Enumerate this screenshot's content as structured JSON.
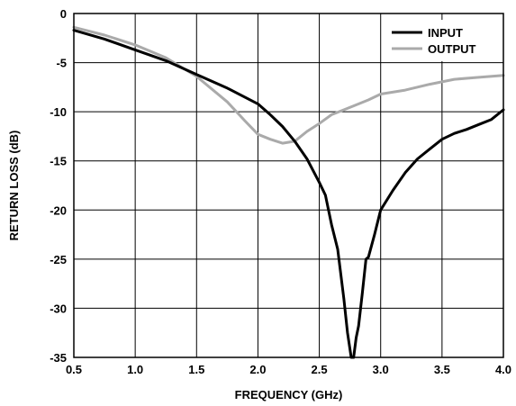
{
  "chart_data": {
    "type": "line",
    "xlabel": "FREQUENCY (GHz)",
    "ylabel": "RETURN LOSS (dB)",
    "xlim": [
      0.5,
      4.0
    ],
    "ylim": [
      -35,
      0
    ],
    "xticks": [
      "0.5",
      "1.0",
      "1.5",
      "2.0",
      "2.5",
      "3.0",
      "3.5",
      "4.0"
    ],
    "yticks": [
      "0",
      "-5",
      "-10",
      "-15",
      "-20",
      "-25",
      "-30",
      "-35"
    ],
    "grid": true,
    "legend_position": "top-right",
    "series": [
      {
        "name": "INPUT",
        "color": "#000000",
        "x": [
          0.5,
          0.75,
          1.0,
          1.25,
          1.5,
          1.75,
          2.0,
          2.1,
          2.2,
          2.3,
          2.4,
          2.5,
          2.55,
          2.6,
          2.65,
          2.7,
          2.73,
          2.76,
          2.78,
          2.8,
          2.82,
          2.85,
          2.88,
          2.9,
          2.95,
          3.0,
          3.1,
          3.2,
          3.3,
          3.4,
          3.5,
          3.6,
          3.7,
          3.8,
          3.9,
          4.0
        ],
        "y": [
          -1.7,
          -2.6,
          -3.7,
          -4.8,
          -6.2,
          -7.6,
          -9.2,
          -10.3,
          -11.5,
          -13.0,
          -14.8,
          -17.2,
          -18.5,
          -21.5,
          -24.0,
          -29.0,
          -32.5,
          -35.0,
          -35.0,
          -33.0,
          -31.8,
          -28.5,
          -25.0,
          -24.8,
          -22.5,
          -20.0,
          -18.0,
          -16.2,
          -14.8,
          -13.8,
          -12.8,
          -12.2,
          -11.8,
          -11.3,
          -10.8,
          -9.8
        ]
      },
      {
        "name": "OUTPUT",
        "color": "#aaaaaa",
        "x": [
          0.5,
          0.75,
          1.0,
          1.25,
          1.5,
          1.75,
          1.9,
          2.0,
          2.1,
          2.2,
          2.3,
          2.4,
          2.5,
          2.6,
          2.7,
          2.8,
          2.9,
          3.0,
          3.2,
          3.4,
          3.6,
          3.8,
          4.0
        ],
        "y": [
          -1.4,
          -2.2,
          -3.2,
          -4.5,
          -6.4,
          -9.0,
          -11.0,
          -12.3,
          -12.8,
          -13.2,
          -13.0,
          -12.0,
          -11.2,
          -10.3,
          -9.8,
          -9.3,
          -8.8,
          -8.2,
          -7.8,
          -7.2,
          -6.7,
          -6.5,
          -6.3
        ]
      }
    ]
  }
}
